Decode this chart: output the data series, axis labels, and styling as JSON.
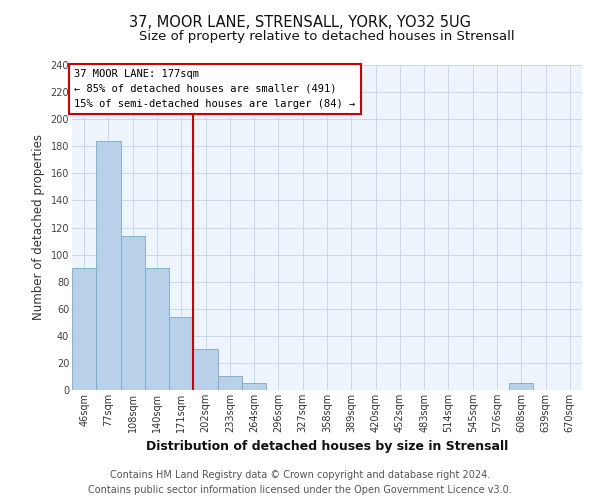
{
  "title": "37, MOOR LANE, STRENSALL, YORK, YO32 5UG",
  "subtitle": "Size of property relative to detached houses in Strensall",
  "xlabel": "Distribution of detached houses by size in Strensall",
  "ylabel": "Number of detached properties",
  "footer_line1": "Contains HM Land Registry data © Crown copyright and database right 2024.",
  "footer_line2": "Contains public sector information licensed under the Open Government Licence v3.0.",
  "bin_labels": [
    "46sqm",
    "77sqm",
    "108sqm",
    "140sqm",
    "171sqm",
    "202sqm",
    "233sqm",
    "264sqm",
    "296sqm",
    "327sqm",
    "358sqm",
    "389sqm",
    "420sqm",
    "452sqm",
    "483sqm",
    "514sqm",
    "545sqm",
    "576sqm",
    "608sqm",
    "639sqm",
    "670sqm"
  ],
  "bar_heights": [
    90,
    184,
    114,
    90,
    54,
    30,
    10,
    5,
    0,
    0,
    0,
    0,
    0,
    0,
    0,
    0,
    0,
    0,
    5,
    0,
    0
  ],
  "bar_color": "#b8d0e8",
  "bar_edge_color": "#7aaac8",
  "grid_color": "#c8d8ea",
  "background_color": "#eef4fb",
  "vline_color": "#cc0000",
  "vline_x": 4.5,
  "annotation_line1": "37 MOOR LANE: 177sqm",
  "annotation_line2": "← 85% of detached houses are smaller (491)",
  "annotation_line3": "15% of semi-detached houses are larger (84) →",
  "annotation_box_color": "#cc0000",
  "ylim": [
    0,
    240
  ],
  "yticks": [
    0,
    20,
    40,
    60,
    80,
    100,
    120,
    140,
    160,
    180,
    200,
    220,
    240
  ],
  "title_fontsize": 10.5,
  "subtitle_fontsize": 9.5,
  "xlabel_fontsize": 9,
  "ylabel_fontsize": 8.5,
  "tick_fontsize": 7,
  "footer_fontsize": 7,
  "ann_fontsize": 7.5
}
